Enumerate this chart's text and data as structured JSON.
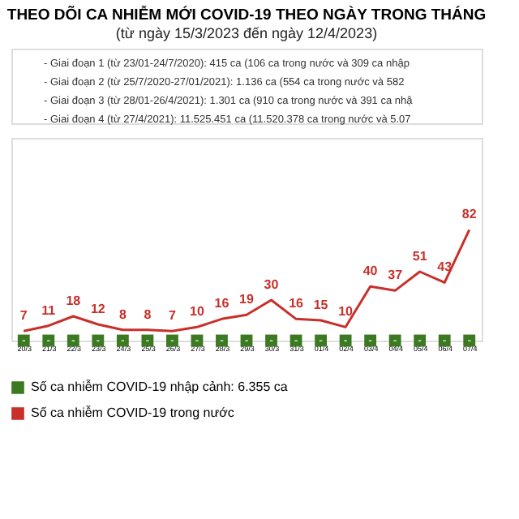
{
  "chart_data": {
    "type": "line",
    "title": "THEO DÕI CA NHIỄM MỚI COVID-19 THEO NGÀY TRONG THÁNG",
    "subtitle": "(từ ngày 15/3/2023 đến ngày 12/4/2023)",
    "annotations": [
      "- Giai đoạn 1 (từ 23/01-24/7/2020): 415 ca (106 ca trong nước và 309 ca nhập",
      "- Giai đoạn 2 (từ 25/7/2020-27/01/2021): 1.136 ca (554 ca trong nước và 582",
      "- Giai đoạn 3 (từ 28/01-26/4/2021): 1.301 ca (910 ca trong nước và 391 ca nhậ",
      "- Giai đoạn 4 (từ 27/4/2021): 11.525.451 ca (11.520.378 ca trong nước và 5.07"
    ],
    "categories": [
      "20/3",
      "21/3",
      "22/3",
      "23/3",
      "24/3",
      "25/3",
      "26/3",
      "27/3",
      "28/3",
      "29/3",
      "30/3",
      "31/3",
      "01/4",
      "02/4",
      "03/4",
      "04/4",
      "05/4",
      "06/4",
      "07/4"
    ],
    "series": [
      {
        "name": "Số ca nhiễm COVID-19 nhập cảnh: 6.355 ca",
        "color": "#3c7a22",
        "type": "scatter",
        "marker": "square",
        "values": [
          0,
          0,
          0,
          0,
          0,
          0,
          0,
          0,
          0,
          0,
          0,
          0,
          0,
          0,
          0,
          0,
          0,
          0,
          0
        ],
        "value_labels": [
          "-",
          "-",
          "-",
          "-",
          "-",
          "-",
          "-",
          "-",
          "-",
          "-",
          "-",
          "-",
          "-",
          "-",
          "-",
          "-",
          "-",
          "-",
          "-"
        ]
      },
      {
        "name": "Số ca nhiễm COVID-19 trong nước",
        "color": "#c8302a",
        "marker": "none",
        "data_labels": true,
        "values": [
          7,
          11,
          18,
          12,
          8,
          8,
          7,
          10,
          16,
          19,
          30,
          16,
          15,
          10,
          40,
          37,
          51,
          43,
          82
        ]
      }
    ],
    "ylim": [
      0,
      150
    ],
    "tick_labels": "x",
    "legend": "bottom"
  }
}
